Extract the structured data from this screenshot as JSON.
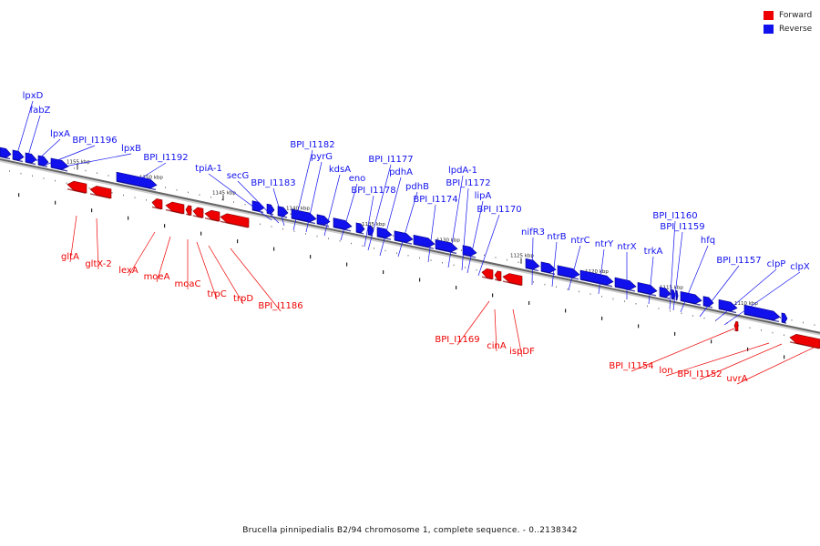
{
  "legend": {
    "forward_label": "Forward",
    "reverse_label": "Reverse",
    "forward_color": "#ee0000",
    "reverse_color": "#1111ee"
  },
  "caption": "Brucella pinnipedialis B2/94 chromosome 1, complete sequence. - 0..2138342",
  "scale_labels": [
    "1155 kbp",
    "1150 kbp",
    "1145 kbp",
    "1140 kbp",
    "1135 kbp",
    "1130 kbp",
    "1125 kbp",
    "1120 kbp",
    "1115 kbp",
    "1110 kbp"
  ],
  "reverse_genes": [
    "lpxD",
    "fabZ",
    "lpxA",
    "BPI_I1196",
    "lpxB",
    "BPI_I1192",
    "tpiA-1",
    "secG",
    "BPI_I1183",
    "BPI_I1182",
    "pyrG",
    "kdsA",
    "eno",
    "BPI_I1178",
    "BPI_I1177",
    "pdhA",
    "pdhB",
    "BPI_I1174",
    "lpdA-1",
    "BPI_I1172",
    "lipA",
    "BPI_I1170",
    "nifR3",
    "ntrB",
    "ntrC",
    "ntrY",
    "ntrX",
    "trkA",
    "BPI_I1160",
    "BPI_I1159",
    "hfq",
    "BPI_I1157",
    "clpP",
    "clpX"
  ],
  "forward_genes": [
    "gltA",
    "gltX-2",
    "lexA",
    "moeA",
    "moaC",
    "trpC",
    "trpD",
    "BPI_I1186",
    "BPI_I1169",
    "cinA",
    "ispDF",
    "BPI_I1154",
    "lon",
    "BPI_I1152",
    "uvrA"
  ]
}
